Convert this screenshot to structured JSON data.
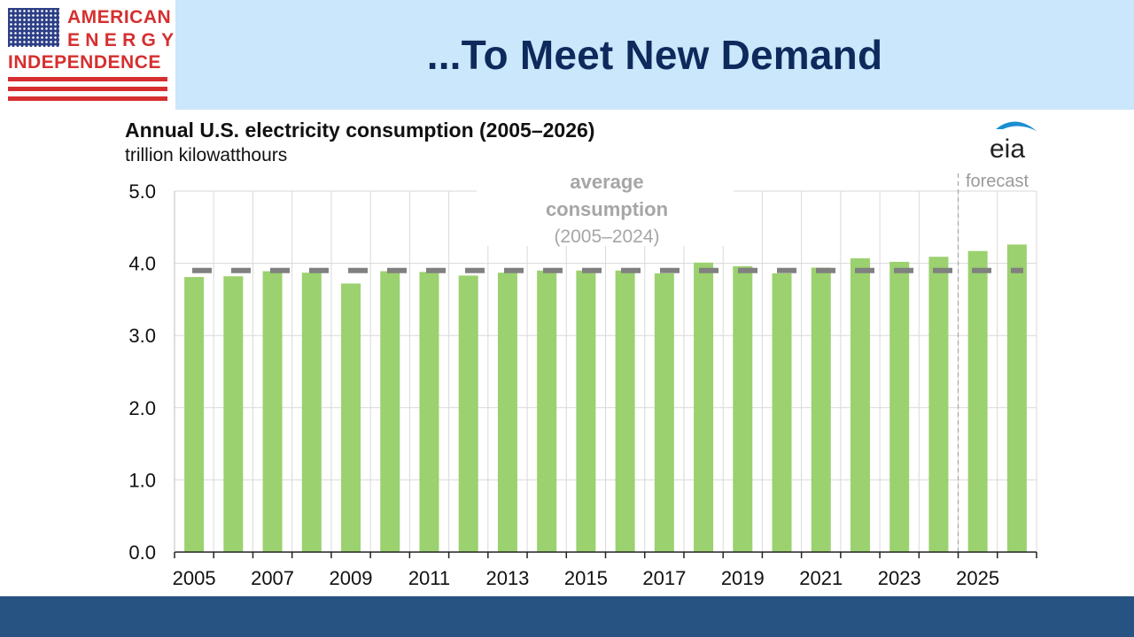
{
  "logo": {
    "line1": "AMERICAN",
    "line2": "ENERGY",
    "line3": "INDEPENDENCE",
    "flag_icon": "us-flag-icon",
    "color": "#d62f2f"
  },
  "banner": {
    "title": "...To Meet New Demand",
    "background": "#cbe7fb",
    "title_color": "#0e2a5c"
  },
  "footer": {
    "color": "#265382"
  },
  "eia_logo": {
    "text": "eia",
    "icon": "eia-logo-icon",
    "arc_color": "#1b8ed0"
  },
  "chart_data": {
    "type": "bar",
    "title": "Annual U.S. electricity consumption (2005–2026)",
    "subtitle": "trillion kilowatthours",
    "xlabel": "",
    "ylabel": "",
    "ylim": [
      0,
      5
    ],
    "yticks": [
      "0.0",
      "1.0",
      "2.0",
      "3.0",
      "4.0",
      "5.0"
    ],
    "xtick_labels": [
      "2005",
      "2007",
      "2009",
      "2011",
      "2013",
      "2015",
      "2017",
      "2019",
      "2021",
      "2023",
      "2025"
    ],
    "categories": [
      "2005",
      "2006",
      "2007",
      "2008",
      "2009",
      "2010",
      "2011",
      "2012",
      "2013",
      "2014",
      "2015",
      "2016",
      "2017",
      "2018",
      "2019",
      "2020",
      "2021",
      "2022",
      "2023",
      "2024",
      "2025",
      "2026"
    ],
    "series": [
      {
        "values": [
          3.81,
          3.82,
          3.89,
          3.87,
          3.72,
          3.89,
          3.88,
          3.83,
          3.87,
          3.9,
          3.9,
          3.9,
          3.86,
          4.01,
          3.96,
          3.86,
          3.94,
          4.07,
          4.02,
          4.09,
          4.17,
          4.26
        ],
        "color": "#9bd16f"
      }
    ],
    "average": {
      "value": 3.9,
      "label_line1": "average",
      "label_line2": "consumption",
      "label_line3": "(2005–2024)",
      "color": "#808080"
    },
    "forecast": {
      "label": "forecast",
      "start_after": "2024"
    },
    "grid": true
  }
}
